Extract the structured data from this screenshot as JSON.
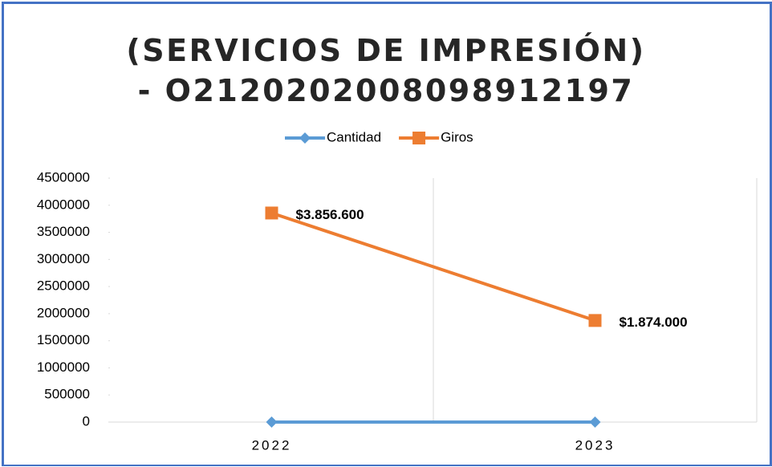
{
  "chart_data": {
    "type": "line",
    "title": "(SERVICIOS DE IMPRESIÓN) - O2120202008098912197",
    "categories": [
      "2022",
      "2023"
    ],
    "series": [
      {
        "name": "Cantidad",
        "color": "#5b9bd5",
        "marker": "diamond",
        "values": [
          0,
          0
        ]
      },
      {
        "name": "Giros",
        "color": "#ed7d31",
        "marker": "square",
        "values": [
          3856600,
          1874000
        ],
        "value_labels": [
          "$3.856.600",
          "$1.874.000"
        ]
      }
    ],
    "ylim": [
      0,
      4500000
    ],
    "yticks": [
      0,
      500000,
      1000000,
      1500000,
      2000000,
      2500000,
      3000000,
      3500000,
      4000000,
      4500000
    ],
    "legend": "top"
  }
}
